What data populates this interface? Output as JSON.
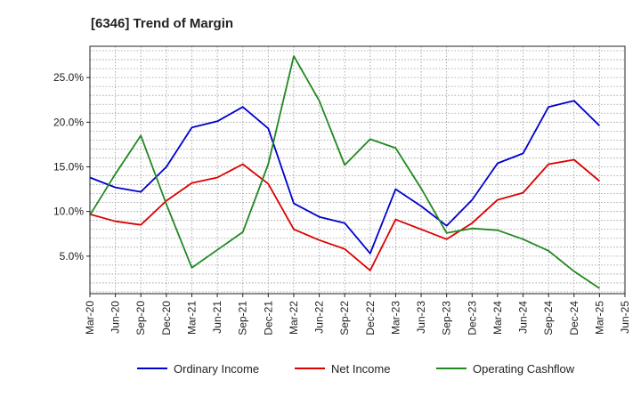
{
  "chart_data": {
    "type": "line",
    "title": "[6346]  Trend of Margin",
    "xlabel": "",
    "ylabel": "",
    "x": [
      "Mar-20",
      "Jun-20",
      "Sep-20",
      "Dec-20",
      "Mar-21",
      "Jun-21",
      "Sep-21",
      "Dec-21",
      "Mar-22",
      "Jun-22",
      "Sep-22",
      "Dec-22",
      "Mar-23",
      "Jun-23",
      "Sep-23",
      "Dec-23",
      "Mar-24",
      "Jun-24",
      "Sep-24",
      "Dec-24",
      "Mar-25",
      "Jun-25"
    ],
    "ylim": [
      0.8,
      28.5
    ],
    "yticks": [
      5,
      10,
      15,
      20,
      25
    ],
    "ytick_labels": [
      "5.0%",
      "10.0%",
      "15.0%",
      "20.0%",
      "25.0%"
    ],
    "grid": true,
    "legend_position": "bottom",
    "series": [
      {
        "name": "Ordinary Income",
        "color": "#0000cc",
        "values": [
          13.8,
          12.7,
          12.2,
          15.0,
          19.4,
          20.1,
          21.7,
          19.3,
          10.9,
          9.4,
          8.7,
          5.3,
          12.5,
          10.6,
          8.4,
          11.3,
          15.4,
          16.5,
          21.7,
          22.4,
          19.6,
          null
        ]
      },
      {
        "name": "Net Income",
        "color": "#dd0000",
        "values": [
          9.7,
          8.9,
          8.5,
          11.2,
          13.2,
          13.8,
          15.3,
          13.1,
          8.0,
          6.8,
          5.8,
          3.4,
          9.1,
          8.0,
          6.9,
          8.7,
          11.3,
          12.1,
          15.3,
          15.8,
          13.4,
          null
        ]
      },
      {
        "name": "Operating Cashflow",
        "color": "#228822",
        "values": [
          9.6,
          14.2,
          18.5,
          10.8,
          3.7,
          5.7,
          7.7,
          15.3,
          27.4,
          22.4,
          15.2,
          18.1,
          17.1,
          12.6,
          7.6,
          8.1,
          7.9,
          6.9,
          5.6,
          3.3,
          1.4,
          null
        ]
      }
    ]
  }
}
